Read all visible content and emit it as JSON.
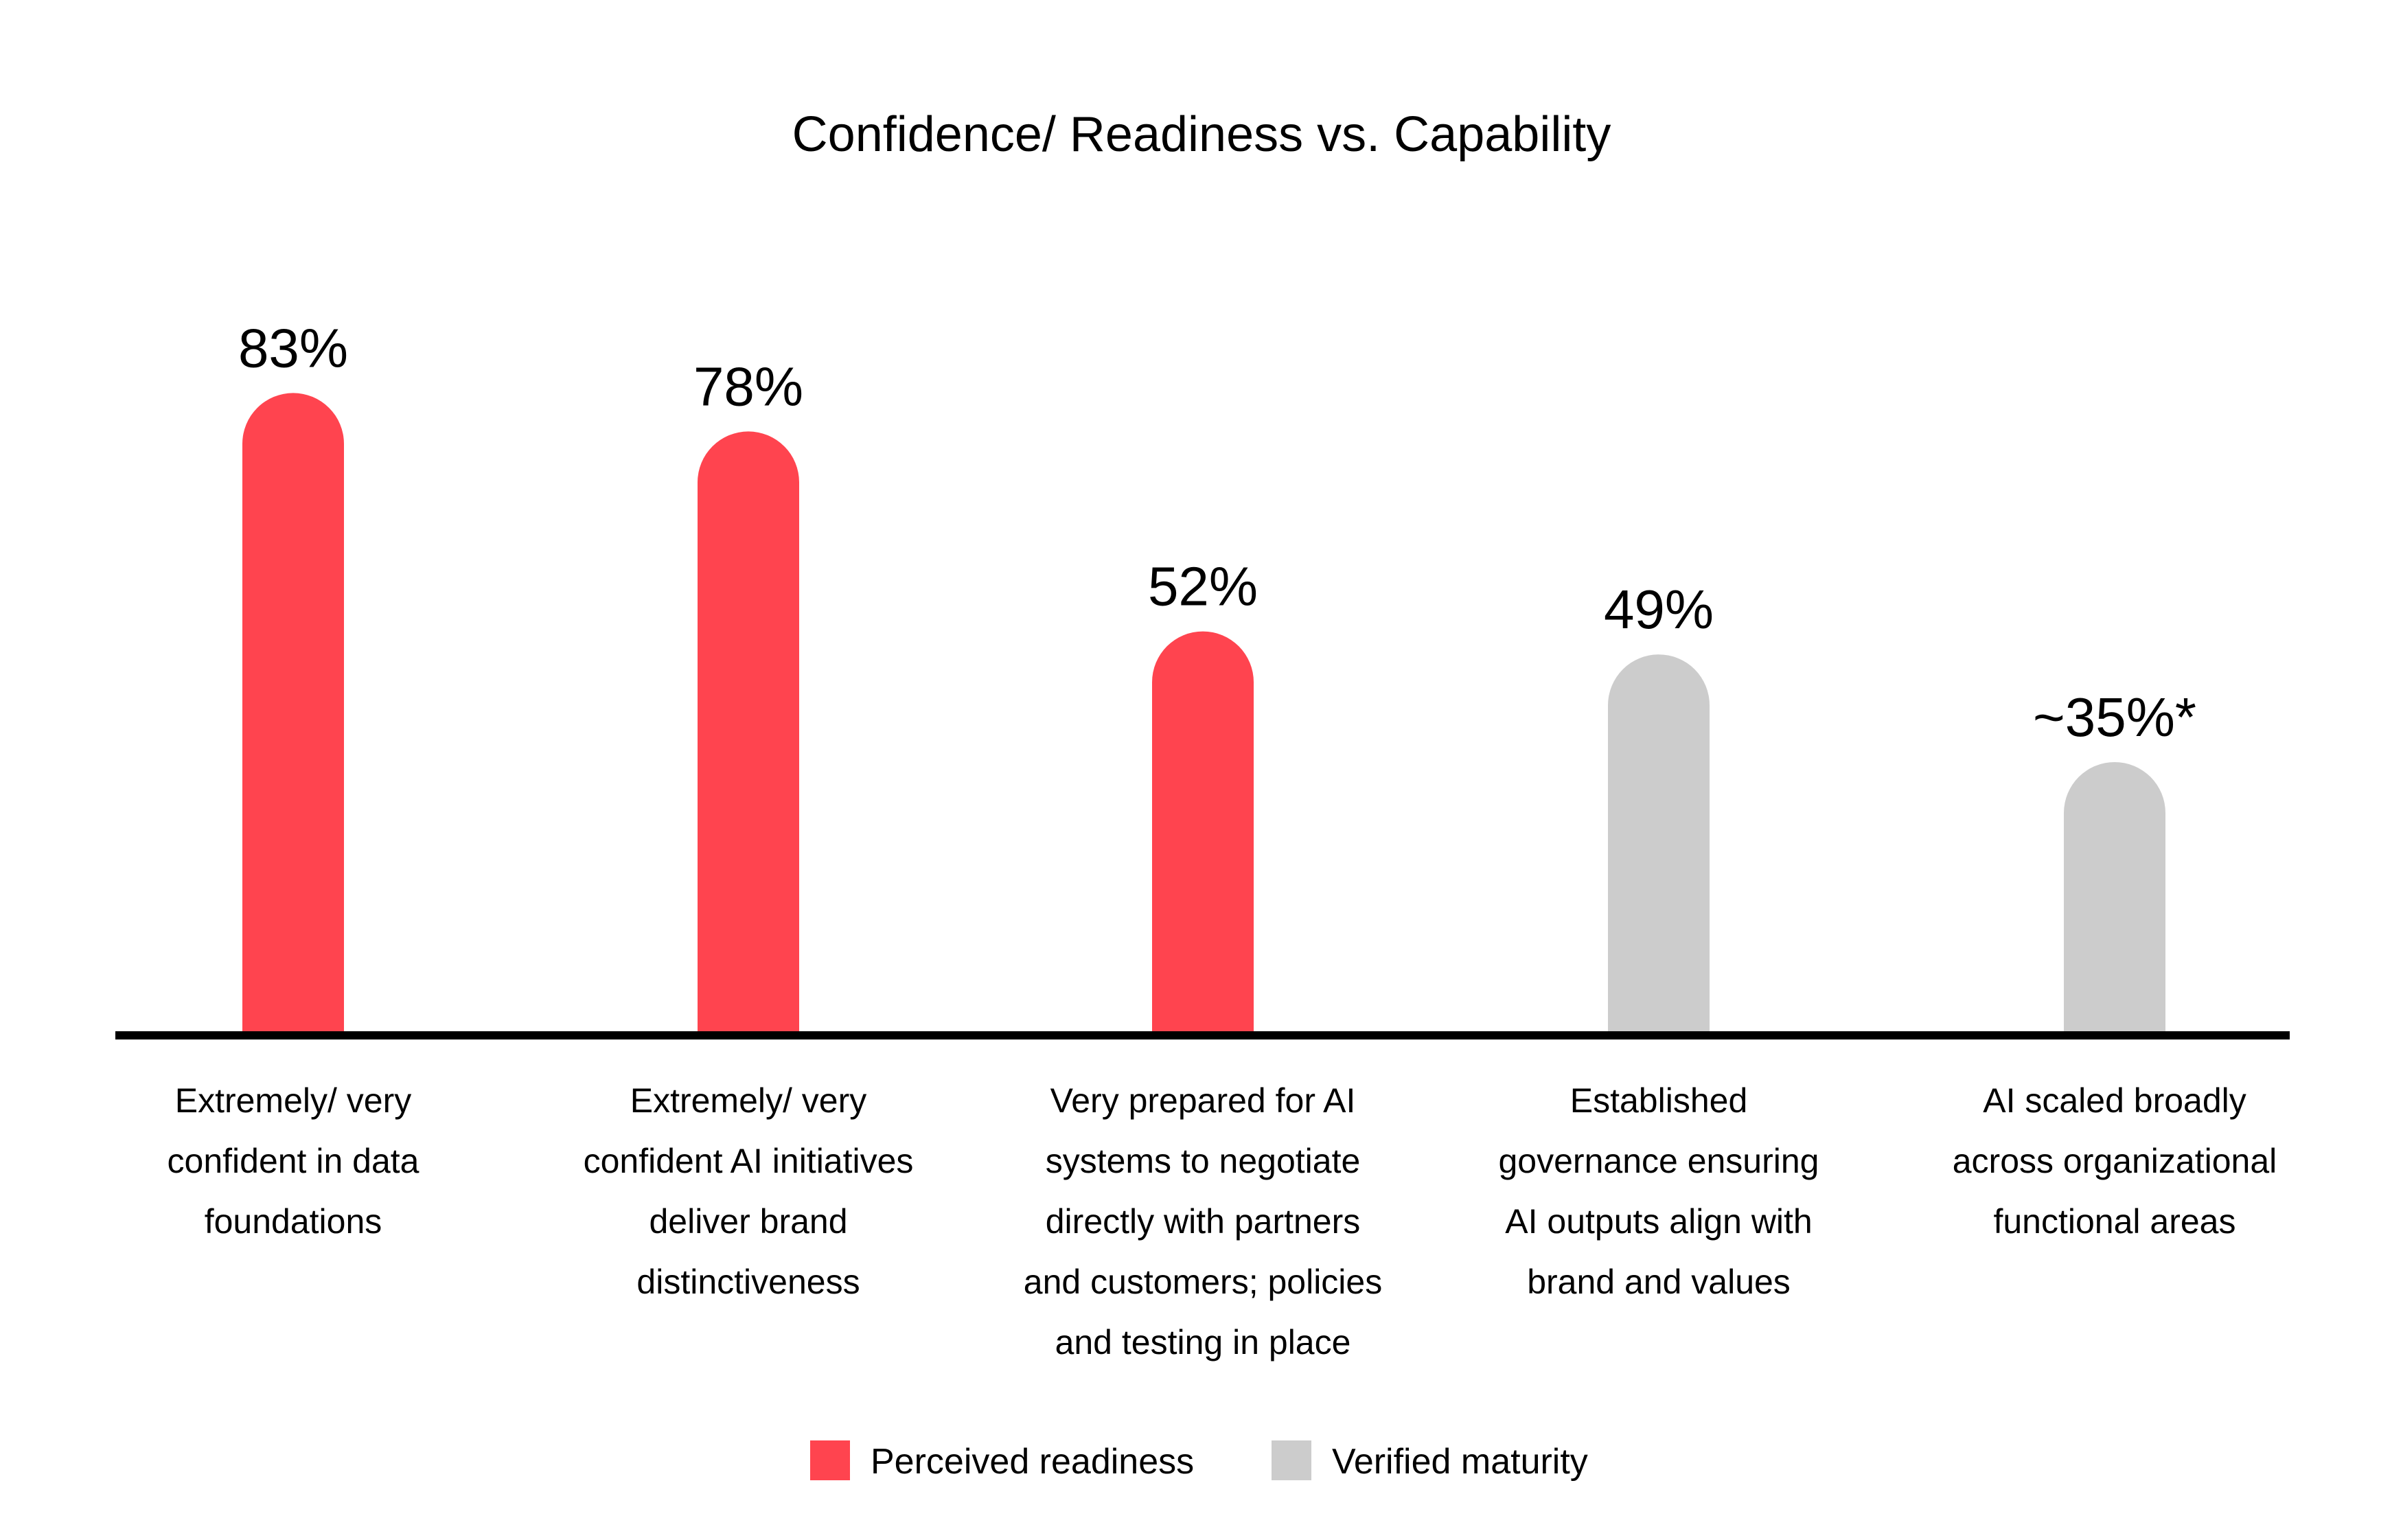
{
  "chart_data": {
    "type": "bar",
    "title": "Confidence/ Readiness vs. Capability",
    "xlabel": "",
    "ylabel": "",
    "ylim": [
      0,
      100
    ],
    "grid": false,
    "legend_position": "bottom",
    "categories": [
      "Extremely/ very confident in data foundations",
      "Extremely/ very confident AI initiatives deliver brand distinctiveness",
      "Very prepared for AI systems to negotiate directly with partners and customers; policies and testing in place",
      "Established governance ensuring AI outputs align with brand and values",
      "AI scaled broadly across organizational functional areas"
    ],
    "category_lines": [
      [
        "Extremely/ very",
        "confident in data",
        "foundations"
      ],
      [
        "Extremely/ very",
        "confident AI initiatives",
        "deliver brand",
        "distinctiveness"
      ],
      [
        "Very prepared for AI",
        "systems to negotiate",
        "directly with partners",
        "and customers; policies",
        "and testing in place"
      ],
      [
        "Established",
        "governance ensuring",
        "AI outputs align with",
        "brand and values"
      ],
      [
        "AI scaled broadly",
        "across organizational",
        "functional areas"
      ]
    ],
    "values": [
      83,
      78,
      52,
      49,
      35
    ],
    "value_labels": [
      "83%",
      "78%",
      "52%",
      "49%",
      "~35%*"
    ],
    "bar_series": [
      0,
      0,
      0,
      1,
      1
    ],
    "series": [
      {
        "name": "Perceived readiness",
        "color": "#FF444F"
      },
      {
        "name": "Verified maturity",
        "color": "#CCCCCC"
      }
    ],
    "axis_color": "#000000"
  }
}
